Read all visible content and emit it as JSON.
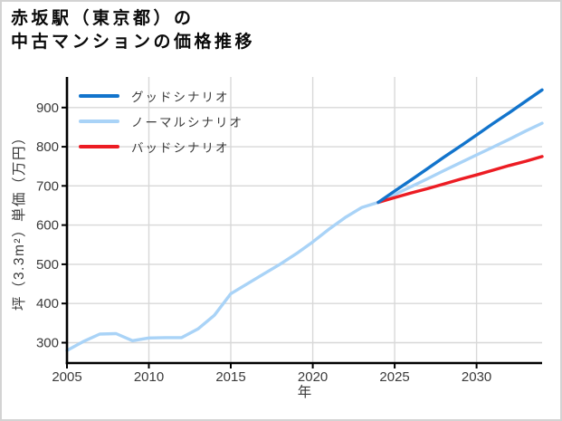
{
  "chart_data": {
    "type": "line",
    "title": "赤坂駅（東京都）の\n中古マンションの価格推移",
    "xlabel": "年",
    "ylabel": "坪（3.3m²）単価（万円）",
    "x_ticks": [
      2005,
      2010,
      2015,
      2020,
      2025,
      2030
    ],
    "y_ticks": [
      300,
      400,
      500,
      600,
      700,
      800,
      900
    ],
    "xlim": [
      2005,
      2034
    ],
    "ylim": [
      248,
      978
    ],
    "grid": true,
    "legend_position": "upper-left",
    "draw_order": [
      1,
      2,
      0
    ],
    "colors": {
      "grid": "#d8d8d8",
      "axis": "#000000",
      "tick_label": "#3a3a3a"
    },
    "series": [
      {
        "name": "グッドシナリオ",
        "slug": "good-scenario",
        "color": "#1274cc",
        "x": [
          2024,
          2025,
          2026,
          2027,
          2028,
          2029,
          2030,
          2031,
          2032,
          2033,
          2034
        ],
        "values": [
          658,
          687,
          715,
          744,
          773,
          801,
          830,
          859,
          887,
          916,
          945
        ]
      },
      {
        "name": "ノーマルシナリオ",
        "slug": "normal-scenario",
        "color": "#a9d3f7",
        "x": [
          2005,
          2006,
          2007,
          2008,
          2009,
          2010,
          2011,
          2012,
          2013,
          2014,
          2015,
          2016,
          2017,
          2018,
          2019,
          2020,
          2021,
          2022,
          2023,
          2024,
          2025,
          2026,
          2027,
          2028,
          2029,
          2030,
          2031,
          2032,
          2033,
          2034
        ],
        "values": [
          280,
          303,
          322,
          323,
          305,
          312,
          313,
          313,
          335,
          370,
          425,
          450,
          475,
          500,
          527,
          557,
          590,
          620,
          645,
          658,
          678,
          698,
          718,
          739,
          759,
          779,
          799,
          819,
          840,
          860
        ]
      },
      {
        "name": "バッドシナリオ",
        "slug": "bad-scenario",
        "color": "#ec1c23",
        "x": [
          2024,
          2025,
          2026,
          2027,
          2028,
          2029,
          2030,
          2031,
          2032,
          2033,
          2034
        ],
        "values": [
          658,
          670,
          682,
          693,
          705,
          717,
          728,
          740,
          752,
          763,
          775
        ]
      }
    ]
  }
}
